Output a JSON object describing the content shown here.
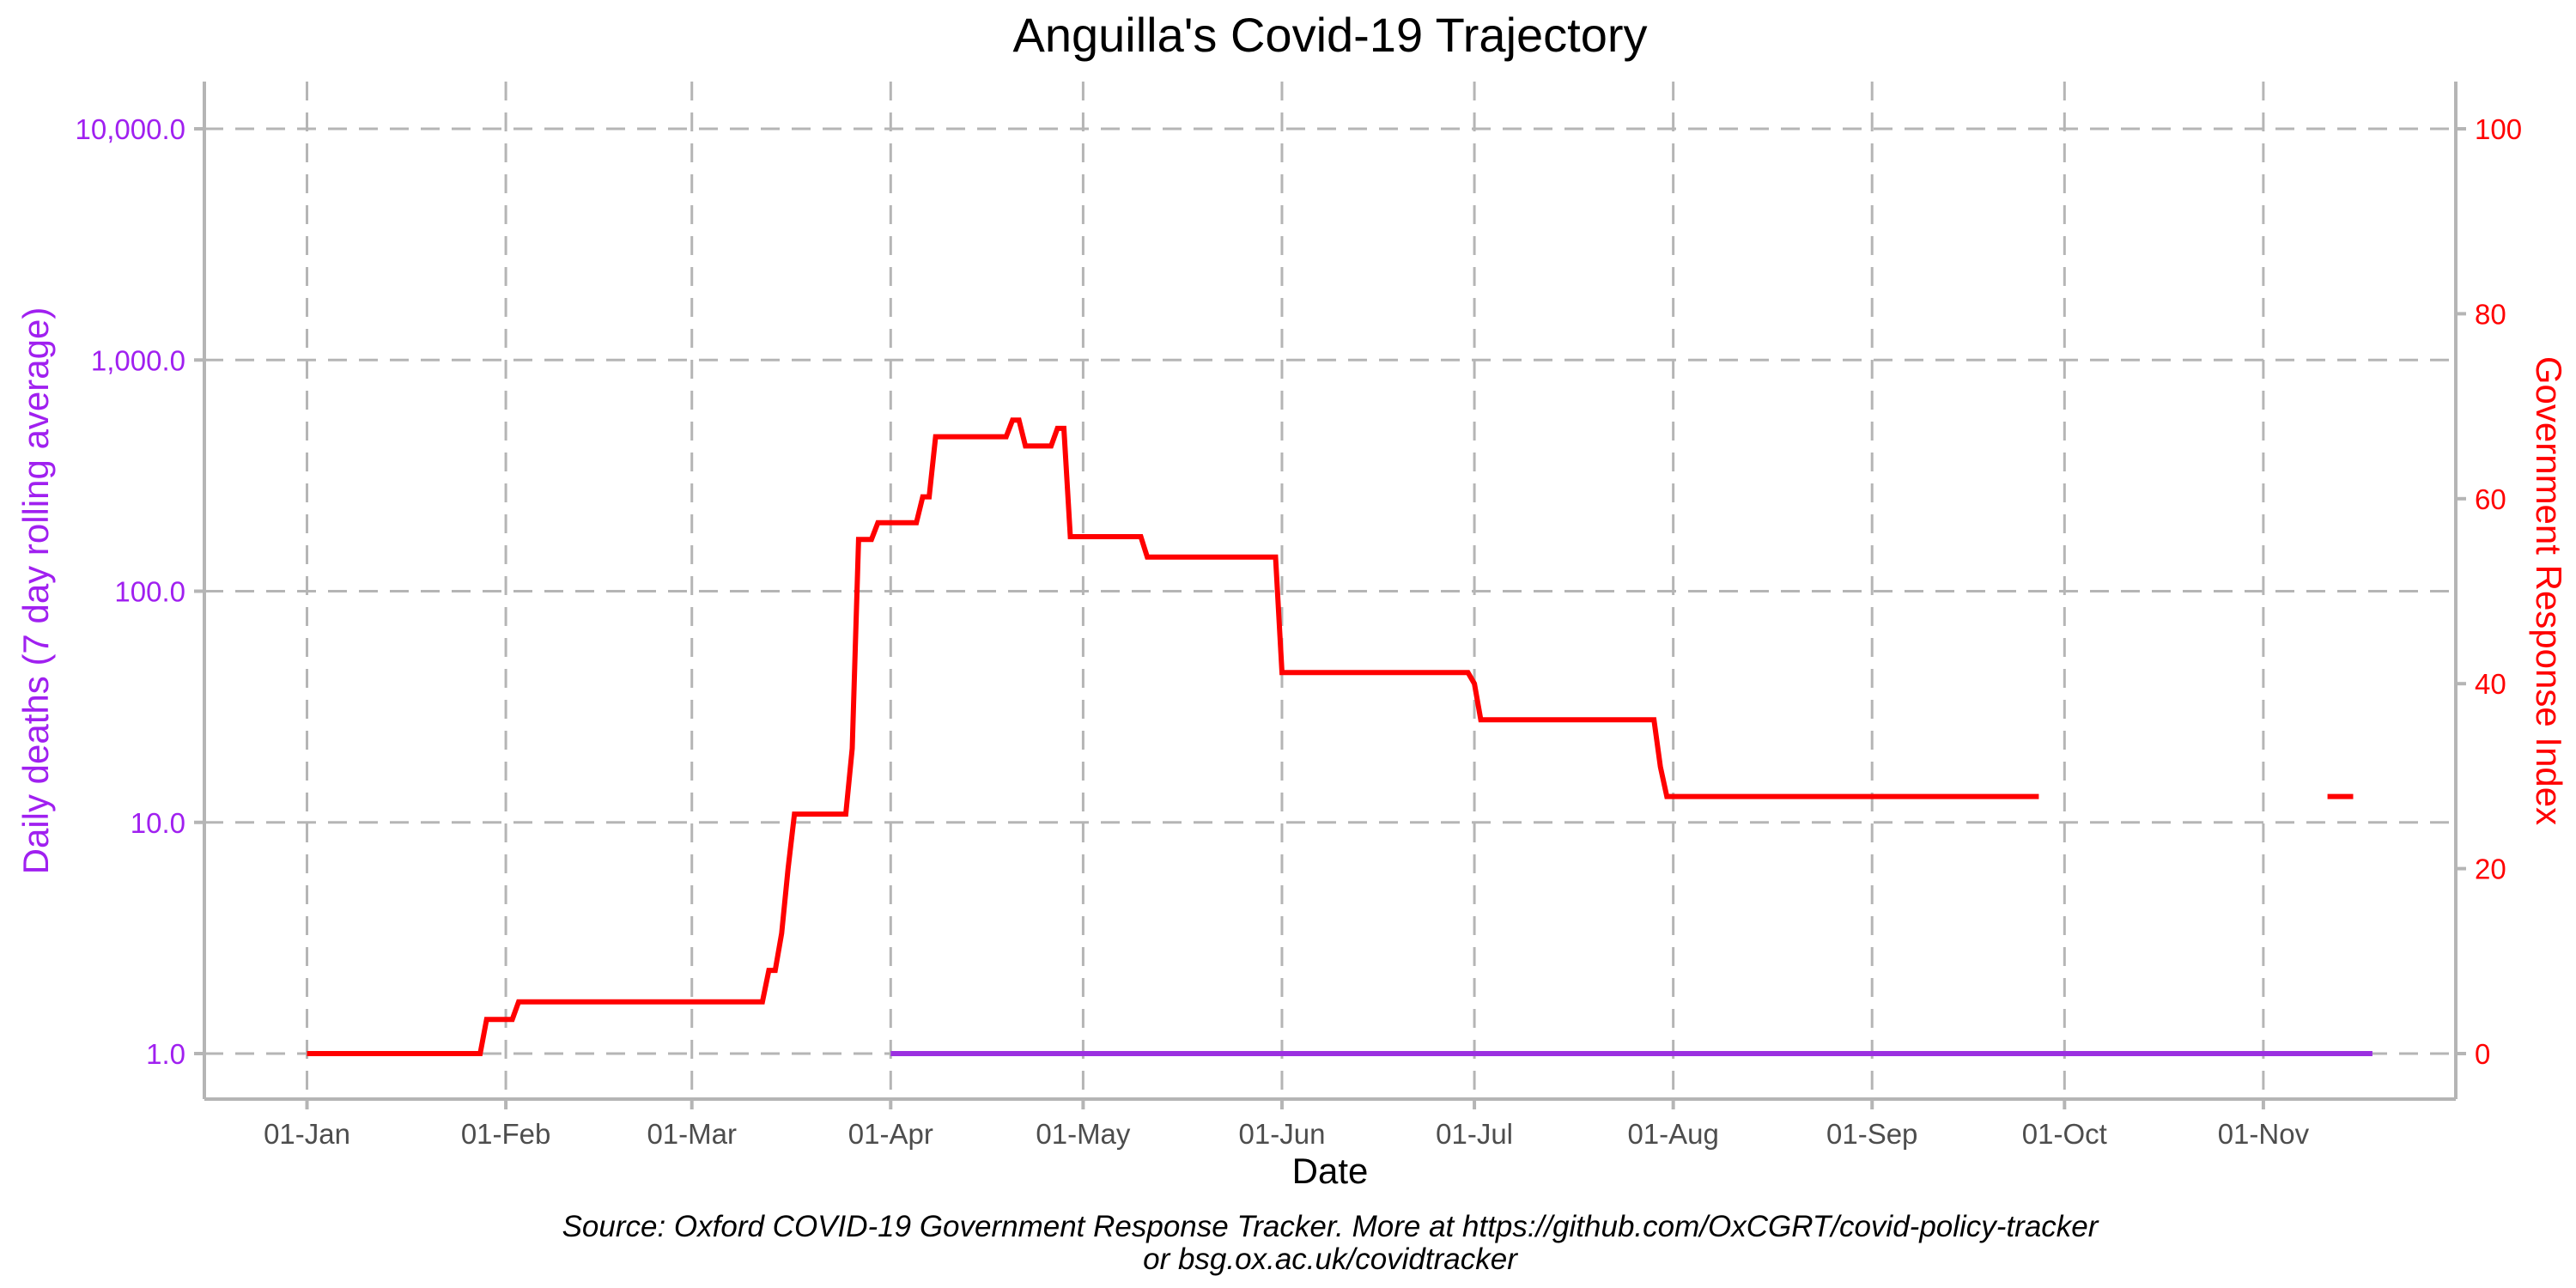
{
  "chart_data": {
    "type": "line",
    "title": "Anguilla's Covid-19 Trajectory",
    "xlabel": "Date",
    "ylabel_left": "Daily deaths (7 day rolling average)",
    "ylabel_right": "Government Response Index",
    "caption_line1": "Source: Oxford COVID-19 Government Response Tracker. More at https://github.com/OxCGRT/covid-policy-tracker",
    "caption_line2": "or bsg.ox.ac.uk/covidtracker",
    "x_ticks": [
      {
        "label": "01-Jan",
        "day": 0
      },
      {
        "label": "01-Feb",
        "day": 31
      },
      {
        "label": "01-Mar",
        "day": 60
      },
      {
        "label": "01-Apr",
        "day": 91
      },
      {
        "label": "01-May",
        "day": 121
      },
      {
        "label": "01-Jun",
        "day": 152
      },
      {
        "label": "01-Jul",
        "day": 182
      },
      {
        "label": "01-Aug",
        "day": 213
      },
      {
        "label": "01-Sep",
        "day": 244
      },
      {
        "label": "01-Oct",
        "day": 274
      },
      {
        "label": "01-Nov",
        "day": 305
      }
    ],
    "x_range_days": [
      -16,
      335
    ],
    "y_left": {
      "scale": "log",
      "range": [
        1,
        10000
      ],
      "ticks": [
        {
          "label": "1.0",
          "value": 1
        },
        {
          "label": "10.0",
          "value": 10
        },
        {
          "label": "100.0",
          "value": 100
        },
        {
          "label": "1,000.0",
          "value": 1000
        },
        {
          "label": "10,000.0",
          "value": 10000
        }
      ],
      "color": "#a020f0"
    },
    "y_right": {
      "scale": "linear",
      "range": [
        0,
        100
      ],
      "ticks": [
        {
          "label": "0",
          "value": 0
        },
        {
          "label": "20",
          "value": 20
        },
        {
          "label": "40",
          "value": 40
        },
        {
          "label": "60",
          "value": 60
        },
        {
          "label": "80",
          "value": 80
        },
        {
          "label": "100",
          "value": 100
        }
      ],
      "color": "#ff0000"
    },
    "grid": true,
    "series": [
      {
        "axis": "left",
        "color": "#9b30e0",
        "segments": [
          [
            [
              91,
              1
            ],
            [
              322,
              1
            ]
          ]
        ]
      },
      {
        "axis": "right",
        "color": "#ff0000",
        "segments": [
          [
            [
              0,
              0
            ],
            [
              27,
              0
            ],
            [
              28,
              3.7
            ],
            [
              32,
              3.7
            ],
            [
              33,
              5.6
            ],
            [
              71,
              5.6
            ],
            [
              72,
              9
            ],
            [
              73,
              9
            ],
            [
              74,
              13
            ],
            [
              75,
              20
            ],
            [
              76,
              25.9
            ],
            [
              84,
              25.9
            ],
            [
              85,
              33
            ],
            [
              86,
              55.6
            ],
            [
              88,
              55.6
            ],
            [
              89,
              57.4
            ],
            [
              95,
              57.4
            ],
            [
              96,
              60.2
            ],
            [
              97,
              60.2
            ],
            [
              98,
              66.7
            ],
            [
              109,
              66.7
            ],
            [
              110,
              68.5
            ],
            [
              111,
              68.5
            ],
            [
              112,
              65.7
            ],
            [
              116,
              65.7
            ],
            [
              117,
              67.6
            ],
            [
              118,
              67.6
            ],
            [
              119,
              55.9
            ],
            [
              130,
              55.9
            ],
            [
              131,
              53.7
            ],
            [
              151,
              53.7
            ],
            [
              152,
              41.2
            ],
            [
              181,
              41.2
            ],
            [
              182,
              40
            ],
            [
              183,
              36.1
            ],
            [
              210,
              36.1
            ],
            [
              211,
              31
            ],
            [
              212,
              27.8
            ],
            [
              270,
              27.8
            ]
          ],
          [
            [
              315,
              27.8
            ],
            [
              319,
              27.8
            ]
          ]
        ]
      }
    ]
  }
}
